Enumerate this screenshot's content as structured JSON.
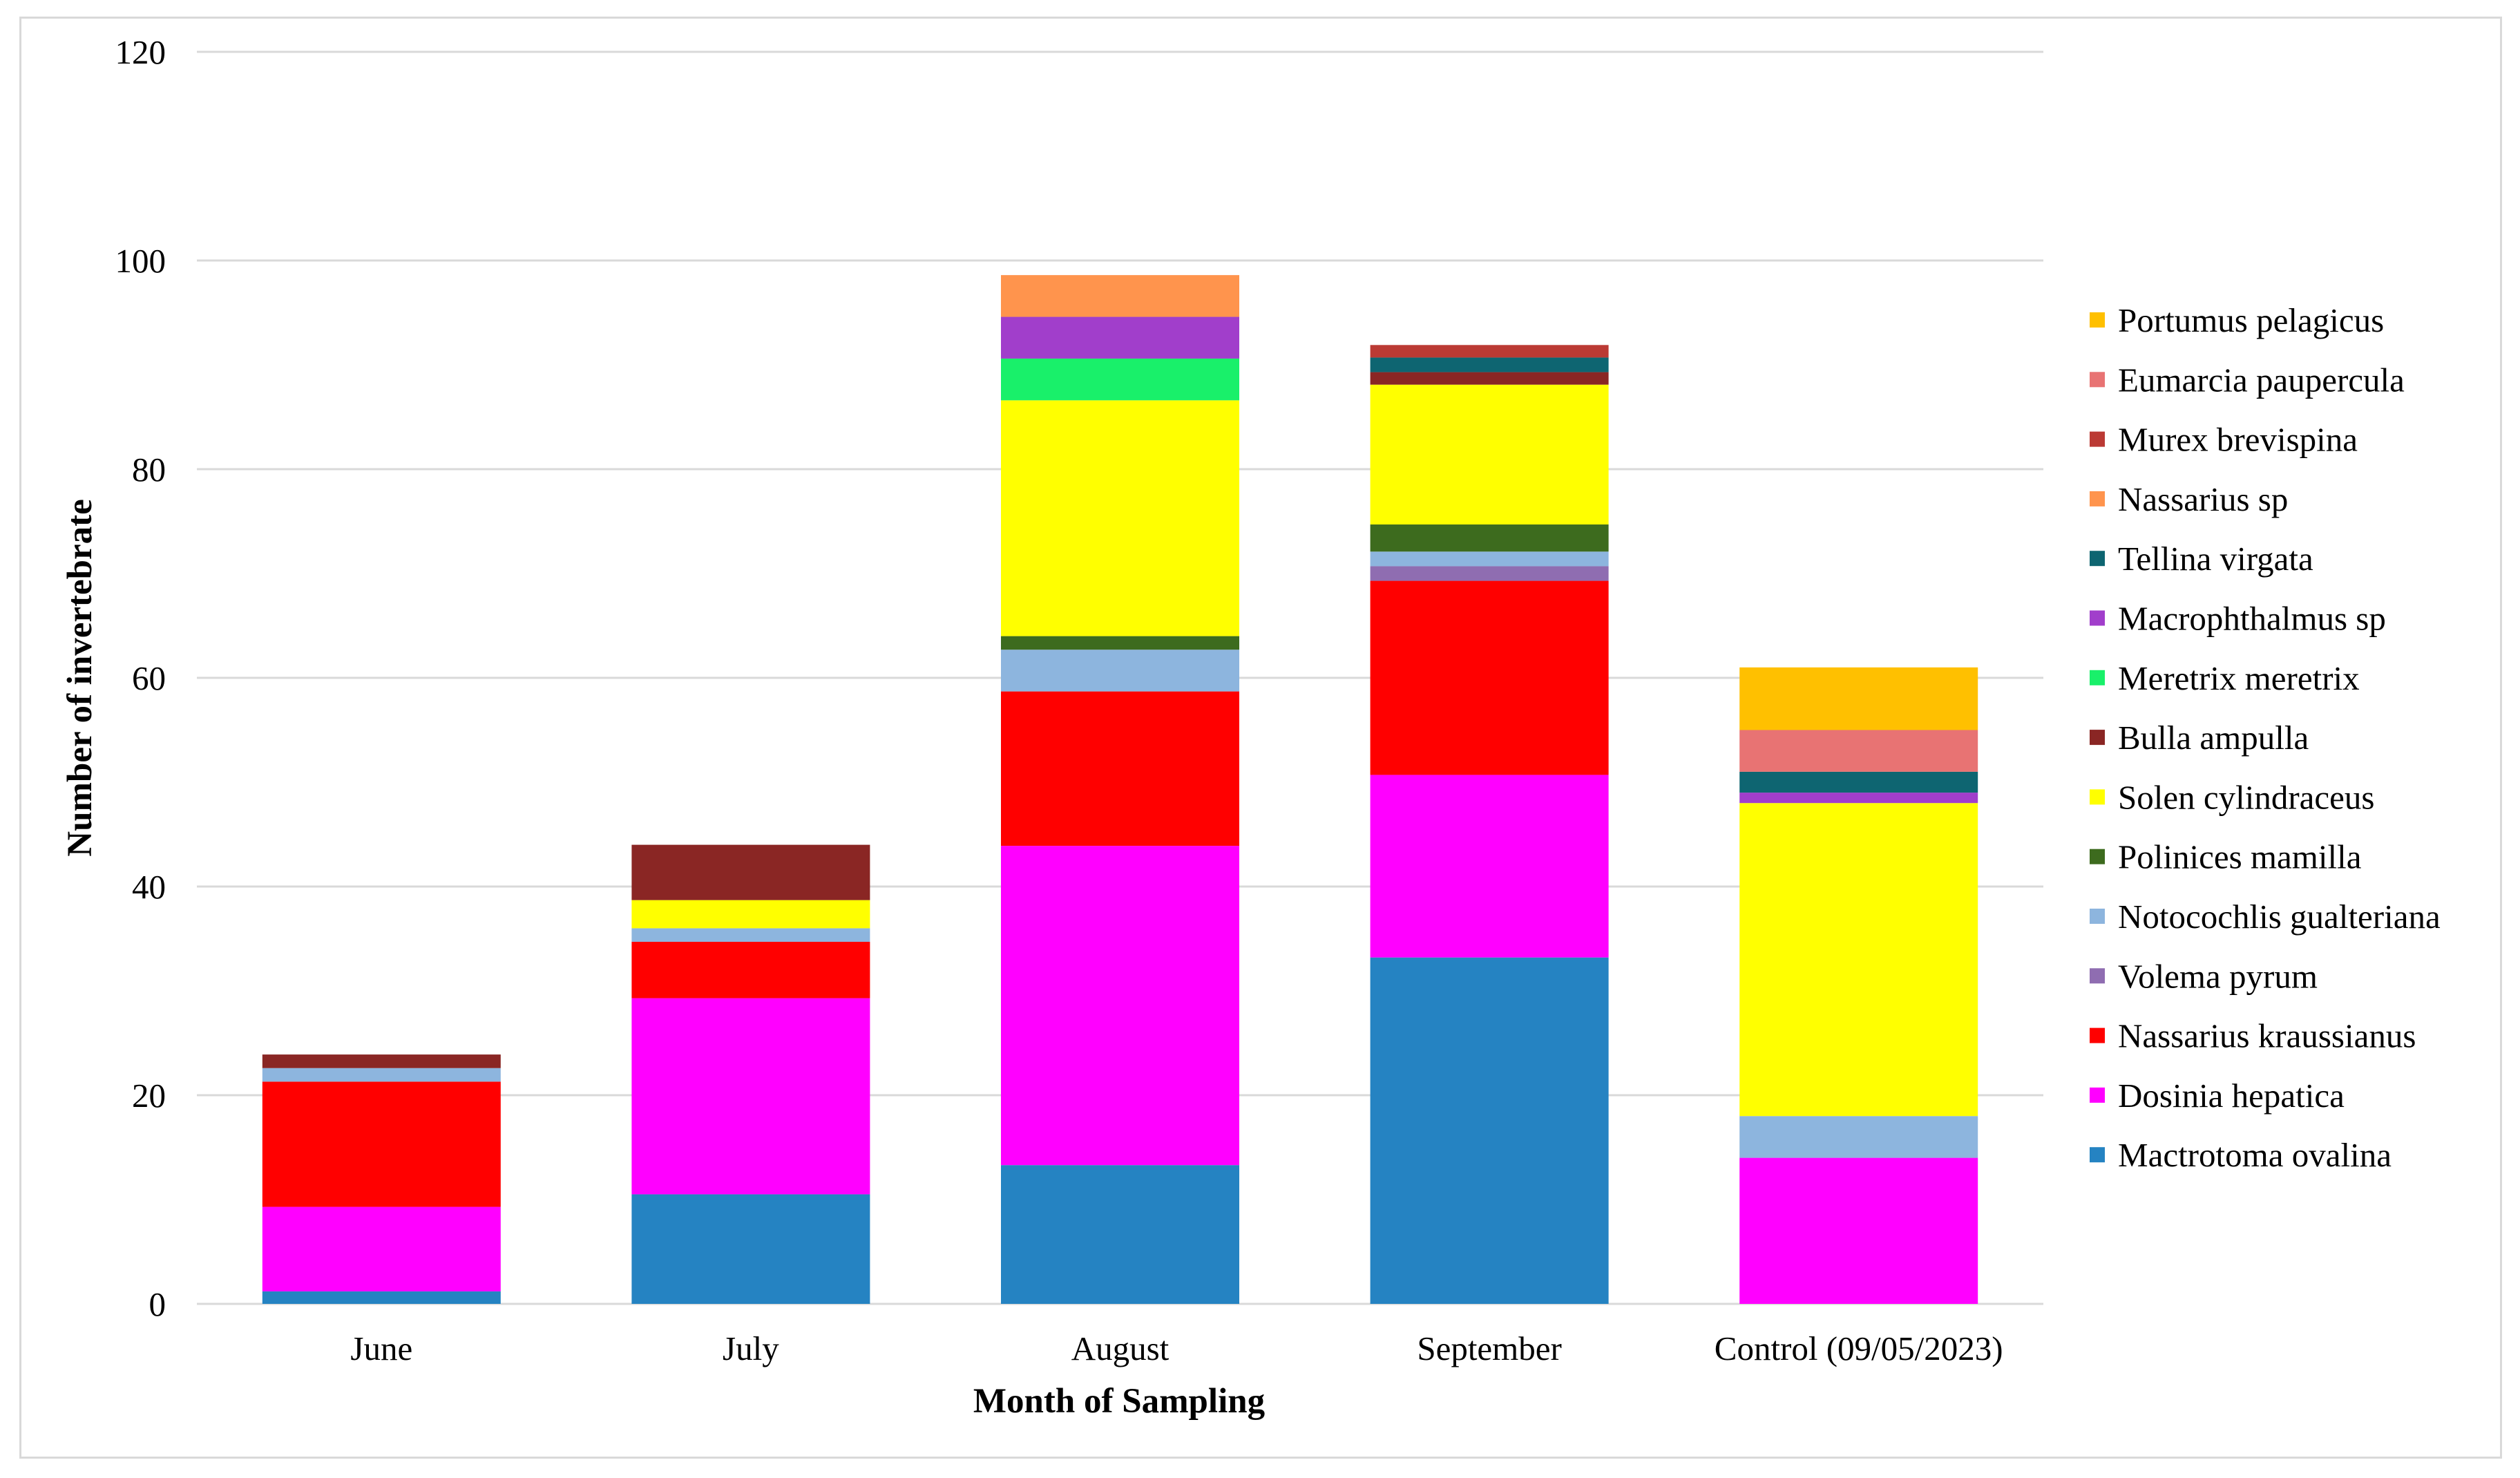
{
  "chart_data": {
    "type": "bar",
    "stacked": true,
    "title": "",
    "xlabel": "Month of Sampling",
    "ylabel": "Number of invertebrate",
    "ylim": [
      0,
      120
    ],
    "yticks": [
      0,
      20,
      40,
      60,
      80,
      100,
      120
    ],
    "grid": true,
    "legend_position": "right",
    "categories": [
      "June",
      "July",
      "August",
      "September",
      "Control (09/05/2023)"
    ],
    "series": [
      {
        "name": "Mactrotoma ovalina",
        "color": "#2583C2",
        "values": [
          1.2,
          10.5,
          13.3,
          33.2,
          0
        ]
      },
      {
        "name": "Dosinia hepatica",
        "color": "#FF00FF",
        "values": [
          8.1,
          18.8,
          30.6,
          17.5,
          14
        ]
      },
      {
        "name": "Nassarius kraussianus",
        "color": "#FF0000",
        "values": [
          12.0,
          5.4,
          14.8,
          18.6,
          0
        ]
      },
      {
        "name": "Volema pyrum",
        "color": "#8F6DB1",
        "values": [
          0,
          0,
          0,
          1.4,
          0
        ]
      },
      {
        "name": "Notocochlis gualteriana",
        "color": "#8DB5DE",
        "values": [
          1.3,
          1.3,
          4.0,
          1.4,
          4
        ]
      },
      {
        "name": "Polinices mamilla",
        "color": "#3D6B1E",
        "values": [
          0,
          0,
          1.3,
          2.6,
          0
        ]
      },
      {
        "name": "Solen cylindraceus",
        "color": "#FFFF00",
        "values": [
          0,
          2.7,
          22.6,
          13.4,
          30
        ]
      },
      {
        "name": "Bulla ampulla",
        "color": "#8A2624",
        "values": [
          1.3,
          5.3,
          0,
          1.2,
          0
        ]
      },
      {
        "name": "Meretrix meretrix",
        "color": "#19F06A",
        "values": [
          0,
          0,
          4.0,
          0,
          0
        ]
      },
      {
        "name": "Macrophthalmus sp",
        "color": "#A13ECB",
        "values": [
          0,
          0,
          4.0,
          0,
          1
        ]
      },
      {
        "name": "Tellina virgata",
        "color": "#0E6571",
        "values": [
          0,
          0,
          0,
          1.4,
          2
        ]
      },
      {
        "name": "Nassarius sp",
        "color": "#FF944D",
        "values": [
          0,
          0,
          4.0,
          0,
          0
        ]
      },
      {
        "name": "Murex brevispina",
        "color": "#BB3A34",
        "values": [
          0,
          0,
          0,
          1.2,
          0
        ]
      },
      {
        "name": "Eumarcia paupercula",
        "color": "#E87373",
        "values": [
          0,
          0,
          0,
          0,
          4
        ]
      },
      {
        "name": "Portumus pelagicus",
        "color": "#FFC000",
        "values": [
          0,
          0,
          0,
          0,
          6
        ]
      }
    ]
  }
}
